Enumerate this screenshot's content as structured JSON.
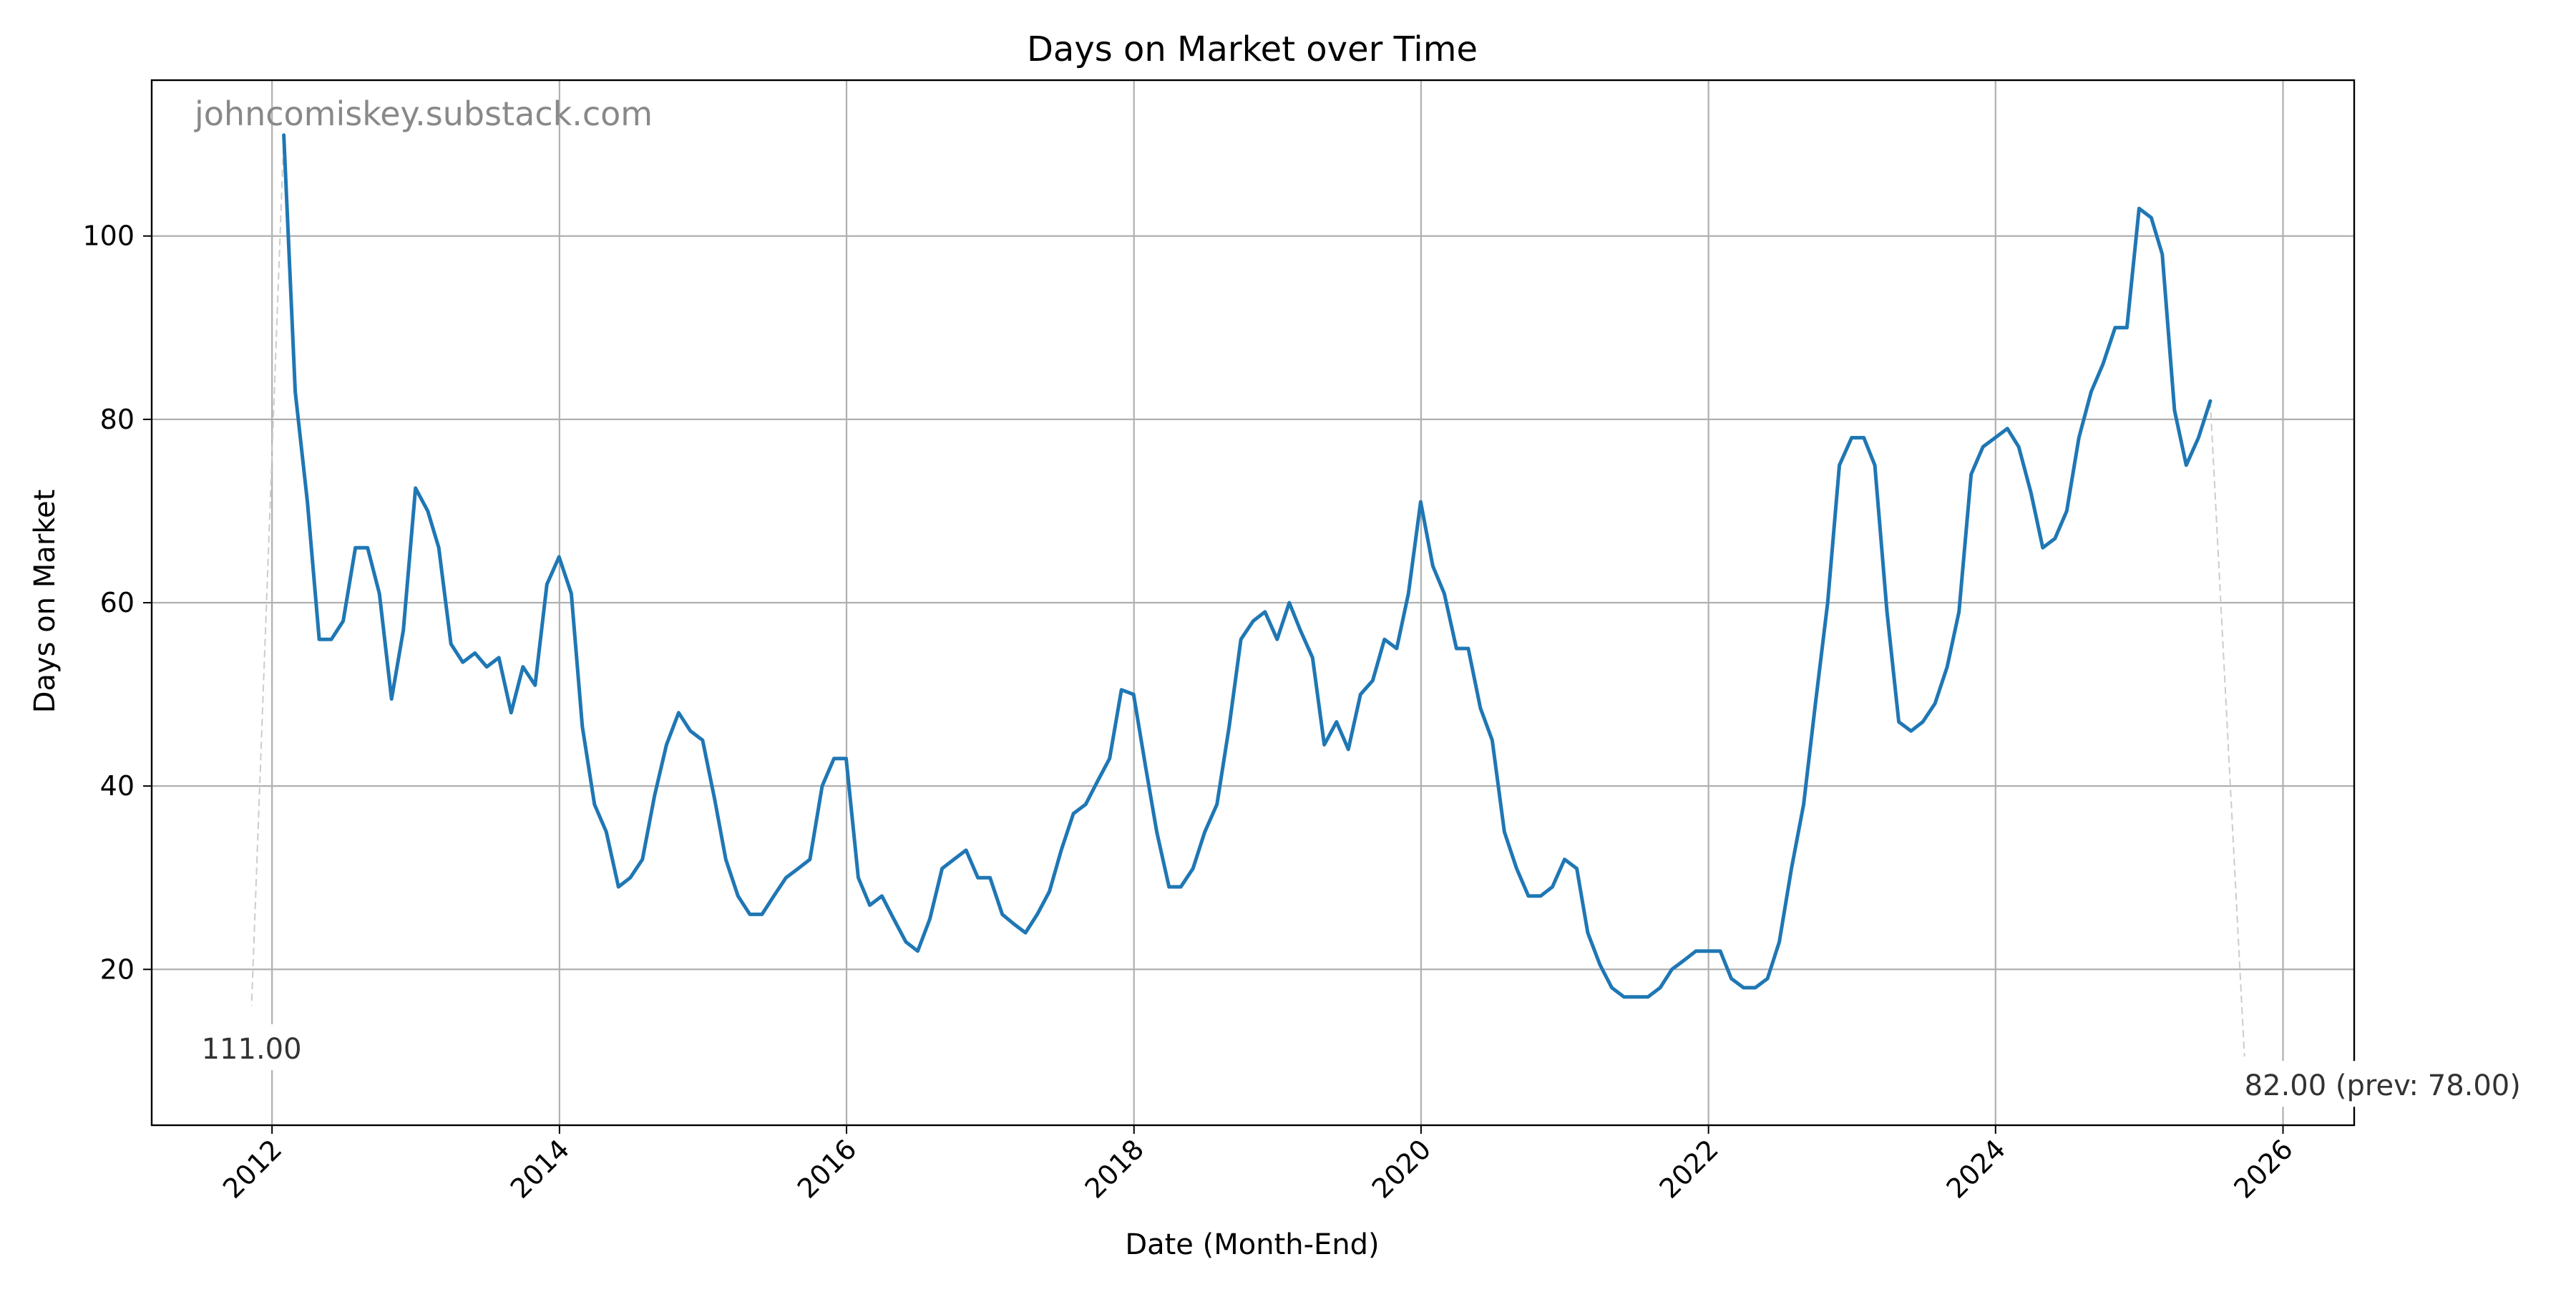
{
  "chart_data": {
    "type": "line",
    "title": "Days on Market over Time",
    "xlabel": "Date (Month-End)",
    "ylabel": "Days on Market",
    "watermark": "johncomiskey.substack.com",
    "xlim": [
      "2011-03-01",
      "2026-07-01"
    ],
    "ylim": [
      3,
      117
    ],
    "x_ticks": [
      "2012",
      "2014",
      "2016",
      "2018",
      "2020",
      "2022",
      "2024",
      "2026"
    ],
    "y_ticks": [
      20,
      40,
      60,
      80,
      100
    ],
    "grid": true,
    "line_color": "#1f77b4",
    "series": [
      {
        "name": "",
        "x": [
          "2012-01-31",
          "2012-02-29",
          "2012-03-31",
          "2012-04-30",
          "2012-05-31",
          "2012-06-30",
          "2012-07-31",
          "2012-08-31",
          "2012-09-30",
          "2012-10-31",
          "2012-11-30",
          "2012-12-31",
          "2013-01-31",
          "2013-02-28",
          "2013-03-31",
          "2013-04-30",
          "2013-05-31",
          "2013-06-30",
          "2013-07-31",
          "2013-08-31",
          "2013-09-30",
          "2013-10-31",
          "2013-11-30",
          "2013-12-31",
          "2014-01-31",
          "2014-02-28",
          "2014-03-31",
          "2014-04-30",
          "2014-05-31",
          "2014-06-30",
          "2014-07-31",
          "2014-08-31",
          "2014-09-30",
          "2014-10-31",
          "2014-11-30",
          "2014-12-31",
          "2015-01-31",
          "2015-02-28",
          "2015-03-31",
          "2015-04-30",
          "2015-05-31",
          "2015-06-30",
          "2015-07-31",
          "2015-08-31",
          "2015-09-30",
          "2015-10-31",
          "2015-11-30",
          "2015-12-31",
          "2016-01-31",
          "2016-02-29",
          "2016-03-31",
          "2016-04-30",
          "2016-05-31",
          "2016-06-30",
          "2016-07-31",
          "2016-08-31",
          "2016-09-30",
          "2016-10-31",
          "2016-11-30",
          "2016-12-31",
          "2017-01-31",
          "2017-02-28",
          "2017-03-31",
          "2017-04-30",
          "2017-05-31",
          "2017-06-30",
          "2017-07-31",
          "2017-08-31",
          "2017-09-30",
          "2017-10-31",
          "2017-11-30",
          "2017-12-31",
          "2018-01-31",
          "2018-02-28",
          "2018-03-31",
          "2018-04-30",
          "2018-05-31",
          "2018-06-30",
          "2018-07-31",
          "2018-08-31",
          "2018-09-30",
          "2018-10-31",
          "2018-11-30",
          "2018-12-31",
          "2019-01-31",
          "2019-02-28",
          "2019-03-31",
          "2019-04-30",
          "2019-05-31",
          "2019-06-30",
          "2019-07-31",
          "2019-08-31",
          "2019-09-30",
          "2019-10-31",
          "2019-11-30",
          "2019-12-31",
          "2020-01-31",
          "2020-02-29",
          "2020-03-31",
          "2020-04-30",
          "2020-05-31",
          "2020-06-30",
          "2020-07-31",
          "2020-08-31",
          "2020-09-30",
          "2020-10-31",
          "2020-11-30",
          "2020-12-31",
          "2021-01-31",
          "2021-02-28",
          "2021-03-31",
          "2021-04-30",
          "2021-05-31",
          "2021-06-30",
          "2021-07-31",
          "2021-08-31",
          "2021-09-30",
          "2021-10-31",
          "2021-11-30",
          "2021-12-31",
          "2022-01-31",
          "2022-02-28",
          "2022-03-31",
          "2022-04-30",
          "2022-05-31",
          "2022-06-30",
          "2022-07-31",
          "2022-08-31",
          "2022-09-30",
          "2022-10-31",
          "2022-11-30",
          "2022-12-31",
          "2023-01-31",
          "2023-02-28",
          "2023-03-31",
          "2023-04-30",
          "2023-05-31",
          "2023-06-30",
          "2023-07-31",
          "2023-08-31",
          "2023-09-30",
          "2023-10-31",
          "2023-11-30",
          "2023-12-31",
          "2024-01-31",
          "2024-02-29",
          "2024-03-31",
          "2024-04-30",
          "2024-05-31",
          "2024-06-30",
          "2024-07-31",
          "2024-08-31",
          "2024-09-30",
          "2024-10-31",
          "2024-11-30",
          "2024-12-31",
          "2025-01-31",
          "2025-02-28",
          "2025-03-31",
          "2025-04-30",
          "2025-05-31",
          "2025-06-30"
        ],
        "y": [
          111,
          83,
          71,
          56,
          56,
          58,
          66,
          66,
          61,
          49.5,
          57,
          72.5,
          70,
          66,
          55.5,
          53.5,
          54.5,
          53,
          54,
          48,
          53,
          51,
          62,
          65,
          61,
          46.5,
          38,
          35,
          29,
          30,
          32,
          39,
          44.5,
          48,
          46,
          45,
          38.5,
          32,
          28,
          26,
          26,
          28,
          30,
          31,
          32,
          40,
          43,
          43,
          30,
          27,
          28,
          25.5,
          23,
          22,
          25.5,
          31,
          32,
          33,
          30,
          30,
          26,
          25,
          24,
          26,
          28.5,
          33,
          37,
          38,
          40.5,
          43,
          50.5,
          50,
          42,
          35,
          29,
          29,
          31,
          35,
          38,
          46.5,
          56,
          58,
          59,
          56,
          60,
          57,
          54,
          44.5,
          47,
          44,
          50,
          51.5,
          56,
          55,
          61,
          71,
          64,
          61,
          55,
          55,
          48.5,
          45,
          35,
          31,
          28,
          28,
          29,
          32,
          31,
          24,
          20.5,
          18,
          17,
          17,
          17,
          18,
          20,
          21,
          22,
          22,
          22,
          19,
          18,
          18,
          19,
          23,
          31,
          38,
          49,
          60,
          75,
          78,
          78,
          75,
          59,
          47,
          46,
          47,
          49,
          53,
          59,
          74,
          77,
          78,
          79,
          77,
          72,
          66,
          67,
          70,
          78,
          83,
          86,
          90,
          90,
          103,
          102,
          98,
          81,
          75,
          78,
          82
        ]
      }
    ],
    "annotations": [
      {
        "text": "111.00",
        "anchor_date": "2012-01-31",
        "anchor_value": 111,
        "label_date": "2011-11-10",
        "label_value": 11.2
      },
      {
        "text": "82.00 (prev: 78.00)",
        "anchor_date": "2025-06-30",
        "anchor_value": 82,
        "label_date": "2025-09-25",
        "label_value": 7.2
      }
    ]
  }
}
